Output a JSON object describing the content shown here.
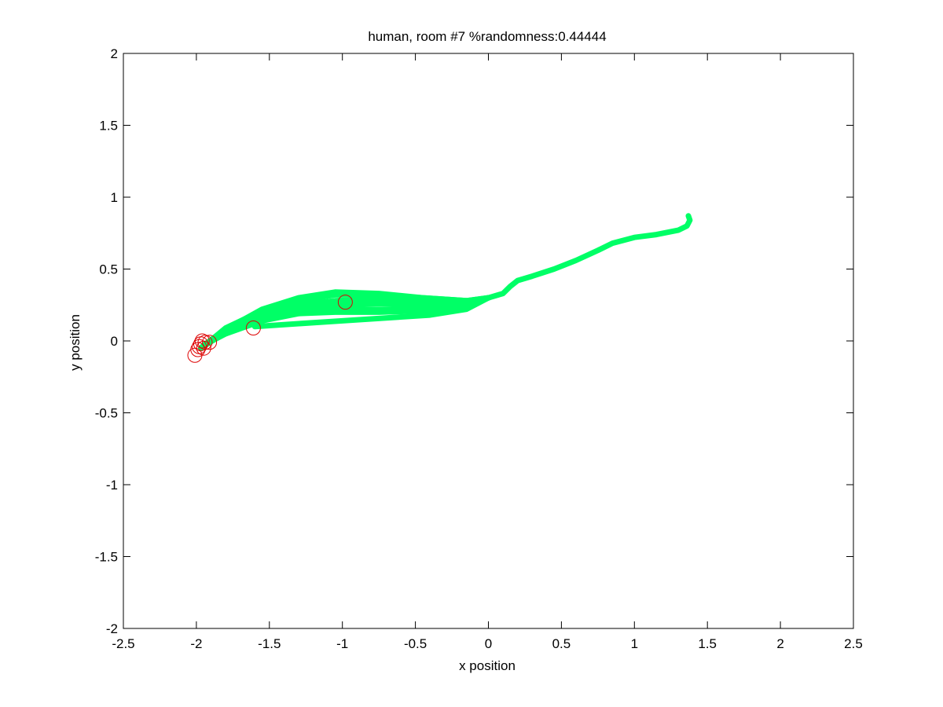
{
  "chart_data": {
    "type": "line",
    "title": "human, room #7 %randomness:0.44444",
    "xlabel": "x position",
    "ylabel": "y position",
    "xlim": [
      -2.5,
      2.5
    ],
    "ylim": [
      -2,
      2
    ],
    "xticks": [
      -2.5,
      -2,
      -1.5,
      -1,
      -0.5,
      0,
      0.5,
      1,
      1.5,
      2,
      2.5
    ],
    "xtick_labels": [
      "-2.5",
      "-2",
      "-1.5",
      "-1",
      "-0.5",
      "0",
      "0.5",
      "1",
      "1.5",
      "2",
      "2.5"
    ],
    "yticks": [
      -2,
      -1.5,
      -1,
      -0.5,
      0,
      0.5,
      1,
      1.5,
      2
    ],
    "ytick_labels": [
      "-2",
      "-1.5",
      "-1",
      "-0.5",
      "0",
      "0.5",
      "1",
      "1.5",
      "2"
    ],
    "grid": false,
    "trajectory_color": "#00ff66",
    "marker_color": "#dd0000",
    "shared_path": [
      [
        0.0,
        0.3
      ],
      [
        0.1,
        0.33
      ],
      [
        0.15,
        0.38
      ],
      [
        0.2,
        0.42
      ],
      [
        0.3,
        0.45
      ],
      [
        0.45,
        0.5
      ],
      [
        0.6,
        0.56
      ],
      [
        0.75,
        0.63
      ],
      [
        0.85,
        0.68
      ],
      [
        1.0,
        0.72
      ],
      [
        1.15,
        0.74
      ],
      [
        1.3,
        0.77
      ],
      [
        1.36,
        0.8
      ],
      [
        1.38,
        0.84
      ],
      [
        1.37,
        0.87
      ]
    ],
    "series": [
      {
        "values": [
          [
            -1.95,
            -0.03
          ],
          [
            -1.8,
            0.08
          ],
          [
            -1.55,
            0.22
          ],
          [
            -1.3,
            0.3
          ],
          [
            -1.05,
            0.34
          ],
          [
            -0.75,
            0.33
          ],
          [
            -0.45,
            0.3
          ],
          [
            -0.15,
            0.28
          ],
          [
            0.0,
            0.3
          ]
        ]
      },
      {
        "values": [
          [
            -1.93,
            -0.02
          ],
          [
            -1.8,
            0.09
          ],
          [
            -1.55,
            0.21
          ],
          [
            -1.3,
            0.28
          ],
          [
            -1.05,
            0.32
          ],
          [
            -0.75,
            0.32
          ],
          [
            -0.45,
            0.3
          ],
          [
            -0.15,
            0.28
          ],
          [
            0.0,
            0.3
          ]
        ]
      },
      {
        "values": [
          [
            -1.96,
            -0.04
          ],
          [
            -1.8,
            0.07
          ],
          [
            -1.55,
            0.2
          ],
          [
            -1.3,
            0.25
          ],
          [
            -1.05,
            0.28
          ],
          [
            -0.75,
            0.29
          ],
          [
            -0.45,
            0.28
          ],
          [
            -0.15,
            0.27
          ],
          [
            0.0,
            0.3
          ]
        ]
      },
      {
        "values": [
          [
            -1.97,
            -0.05
          ],
          [
            -1.8,
            0.06
          ],
          [
            -1.55,
            0.17
          ],
          [
            -1.3,
            0.22
          ],
          [
            -1.05,
            0.25
          ],
          [
            -0.75,
            0.26
          ],
          [
            -0.45,
            0.25
          ],
          [
            -0.15,
            0.25
          ],
          [
            0.0,
            0.3
          ]
        ]
      },
      {
        "values": [
          [
            -1.95,
            -0.03
          ],
          [
            -1.8,
            0.05
          ],
          [
            -1.55,
            0.15
          ],
          [
            -1.3,
            0.2
          ],
          [
            -1.05,
            0.22
          ],
          [
            -0.75,
            0.22
          ],
          [
            -0.45,
            0.22
          ],
          [
            -0.15,
            0.24
          ],
          [
            0.0,
            0.3
          ]
        ]
      },
      {
        "values": [
          [
            -1.94,
            -0.02
          ],
          [
            -1.8,
            0.05
          ],
          [
            -1.55,
            0.14
          ],
          [
            -1.3,
            0.19
          ],
          [
            -1.05,
            0.2
          ],
          [
            -0.75,
            0.2
          ],
          [
            -0.45,
            0.21
          ],
          [
            -0.15,
            0.23
          ],
          [
            0.0,
            0.3
          ]
        ]
      },
      {
        "values": [
          [
            -1.6,
            0.1
          ],
          [
            -1.3,
            0.12
          ],
          [
            -1.0,
            0.14
          ],
          [
            -0.7,
            0.16
          ],
          [
            -0.4,
            0.18
          ],
          [
            -0.15,
            0.22
          ],
          [
            0.0,
            0.3
          ]
        ]
      }
    ],
    "markers": [
      {
        "x": -2.01,
        "y": -0.1
      },
      {
        "x": -1.99,
        "y": -0.06
      },
      {
        "x": -1.98,
        "y": -0.04
      },
      {
        "x": -1.97,
        "y": -0.02
      },
      {
        "x": -1.96,
        "y": 0.0
      },
      {
        "x": -1.95,
        "y": -0.05
      },
      {
        "x": -1.94,
        "y": -0.01
      },
      {
        "x": -1.91,
        "y": -0.01
      },
      {
        "x": -1.61,
        "y": 0.09
      },
      {
        "x": -0.98,
        "y": 0.27
      }
    ]
  }
}
